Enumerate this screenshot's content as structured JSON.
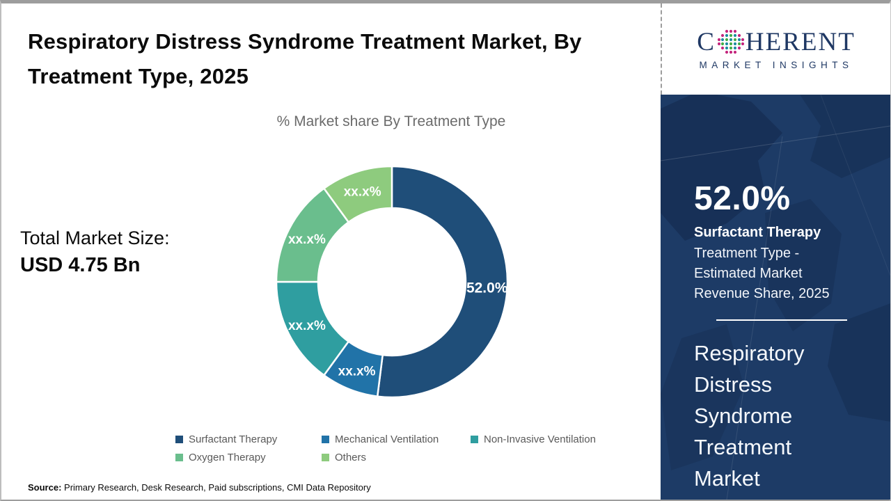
{
  "header": {
    "title": "Respiratory Distress Syndrome Treatment Market, By Treatment Type, 2025"
  },
  "logo": {
    "word_start": "C",
    "word_end": "HERENT",
    "subtext": "MARKET INSIGHTS",
    "navy": "#1F3864",
    "globe_dot_colors": {
      "outer": "#C4267D",
      "teal": "#1C8CA0",
      "green": "#44AC45"
    }
  },
  "chart_data": {
    "type": "pie",
    "variant": "donut",
    "title": "% Market share By Treatment Type",
    "unit": "%",
    "legend_position": "bottom",
    "series": [
      {
        "label": "Surfactant Therapy",
        "value": 52.0,
        "display": "52.0%",
        "color": "#1F4E79"
      },
      {
        "label": "Mechanical Ventilation",
        "value": 8.0,
        "display": "xx.x%",
        "color": "#2173A8"
      },
      {
        "label": "Non-Invasive Ventilation",
        "value": 15.0,
        "display": "xx.x%",
        "color": "#2F9EA0"
      },
      {
        "label": "Oxygen Therapy",
        "value": 15.0,
        "display": "xx.x%",
        "color": "#6ABE8D"
      },
      {
        "label": "Others",
        "value": 10.0,
        "display": "xx.x%",
        "color": "#8ECB7E"
      }
    ]
  },
  "market_size": {
    "label": "Total Market Size:",
    "value": "USD 4.75 Bn"
  },
  "source": {
    "label": "Source:",
    "text": " Primary Research, Desk Research, Paid subscriptions, CMI Data Repository"
  },
  "sidebar": {
    "stat_value": "52.0%",
    "stat_title": "Surfactant Therapy",
    "stat_desc": "Treatment Type - Estimated Market Revenue Share, 2025",
    "market_name_lines": [
      "Respiratory",
      "Distress",
      "Syndrome",
      "Treatment",
      "Market"
    ],
    "background": "#1D3B66"
  }
}
